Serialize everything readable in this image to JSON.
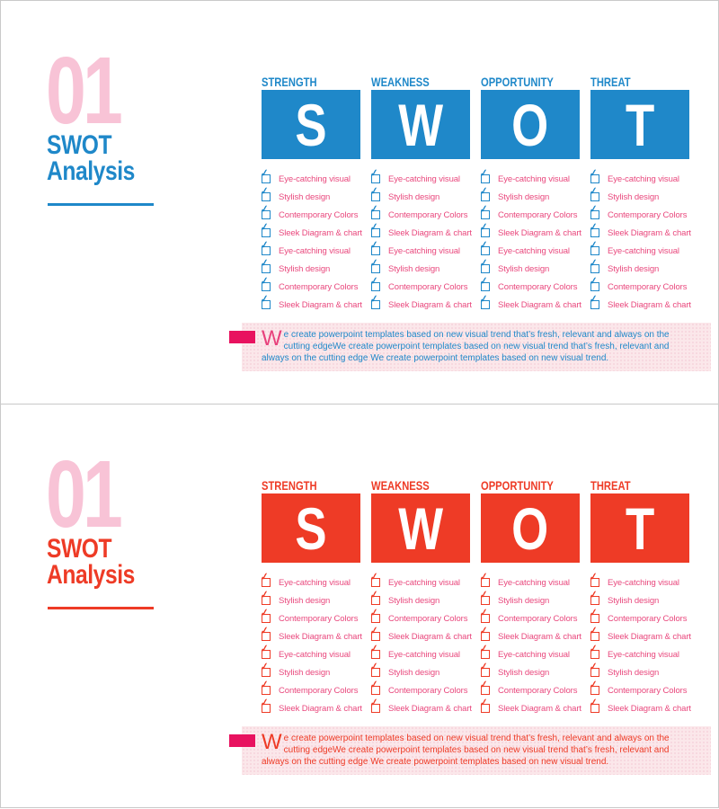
{
  "page": {
    "background": "#ffffff",
    "slide_border": "#c9c9c9"
  },
  "slides": [
    {
      "variant": "blue",
      "number": "01",
      "title_line1": "SWOT",
      "title_line2": "Analysis",
      "columns": [
        {
          "header": "STRENGTH",
          "letter": "S"
        },
        {
          "header": "WEAKNESS",
          "letter": "W"
        },
        {
          "header": "OPPORTUNITY",
          "letter": "O"
        },
        {
          "header": "THREAT",
          "letter": "T"
        }
      ],
      "checklist": [
        "Eye-catching visual",
        "Stylish design",
        "Contemporary Colors",
        "Sleek Diagram & chart",
        "Eye-catching visual",
        "Stylish design",
        "Contemporary Colors",
        "Sleek Diagram & chart"
      ],
      "footer": {
        "dropcap": "W",
        "text": "e create powerpoint templates based on new visual trend that’s fresh, relevant and always on the cutting edgeWe create powerpoint templates based on new visual trend that’s fresh, relevant and always on the cutting edge We create powerpoint templates based on new visual trend."
      },
      "colors": {
        "accent": "#1f88c9",
        "number": "#f8c3d6",
        "item_text": "#e9487d",
        "checkbox": "#1f88c9",
        "dropcap": "#e8417c",
        "footer_tab": "#e8125f",
        "footer_bg": "#fbe7ea",
        "footer_text": "#1f88c9"
      }
    },
    {
      "variant": "red",
      "number": "01",
      "title_line1": "SWOT",
      "title_line2": "Analysis",
      "columns": [
        {
          "header": "STRENGTH",
          "letter": "S"
        },
        {
          "header": "WEAKNESS",
          "letter": "W"
        },
        {
          "header": "OPPORTUNITY",
          "letter": "O"
        },
        {
          "header": "THREAT",
          "letter": "T"
        }
      ],
      "checklist": [
        "Eye-catching visual",
        "Stylish design",
        "Contemporary Colors",
        "Sleek Diagram & chart",
        "Eye-catching visual",
        "Stylish design",
        "Contemporary Colors",
        "Sleek Diagram & chart"
      ],
      "footer": {
        "dropcap": "W",
        "text": "e create powerpoint templates based on new visual trend that’s fresh, relevant and always on the cutting edgeWe create powerpoint templates based on new visual trend that’s fresh, relevant and always on the cutting edge We create powerpoint templates based on new visual trend."
      },
      "colors": {
        "accent": "#ee3b26",
        "number": "#f8c3d6",
        "item_text": "#e9487d",
        "checkbox": "#ee3b26",
        "dropcap": "#ee3b26",
        "footer_tab": "#e8125f",
        "footer_bg": "#fbe7ea",
        "footer_text": "#ee3b26"
      }
    }
  ]
}
